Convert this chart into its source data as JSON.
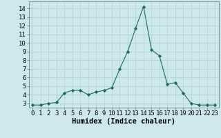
{
  "x": [
    0,
    1,
    2,
    3,
    4,
    5,
    6,
    7,
    8,
    9,
    10,
    11,
    12,
    13,
    14,
    15,
    16,
    17,
    18,
    19,
    20,
    21,
    22,
    23
  ],
  "y": [
    2.8,
    2.8,
    3.0,
    3.1,
    4.2,
    4.5,
    4.5,
    4.0,
    4.3,
    4.5,
    4.8,
    7.0,
    9.0,
    11.7,
    14.2,
    9.2,
    8.5,
    5.2,
    5.4,
    4.2,
    3.0,
    2.8,
    2.8,
    2.8
  ],
  "xlabel": "Humidex (Indice chaleur)",
  "ylim": [
    2.5,
    14.8
  ],
  "xlim": [
    -0.5,
    23.5
  ],
  "yticks": [
    3,
    4,
    5,
    6,
    7,
    8,
    9,
    10,
    11,
    12,
    13,
    14
  ],
  "xticks": [
    0,
    1,
    2,
    3,
    4,
    5,
    6,
    7,
    8,
    9,
    10,
    11,
    12,
    13,
    14,
    15,
    16,
    17,
    18,
    19,
    20,
    21,
    22,
    23
  ],
  "line_color": "#1a6b5a",
  "marker": "D",
  "marker_size": 2.2,
  "bg_color": "#cce8e8",
  "grid_color": "#b0cccc",
  "xlabel_fontsize": 7.5,
  "tick_fontsize": 6.5
}
